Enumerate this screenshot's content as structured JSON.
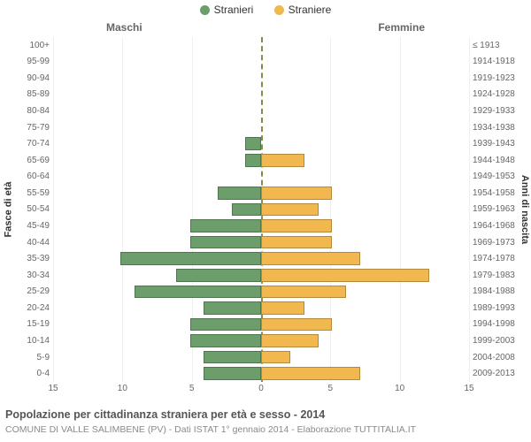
{
  "legend": {
    "male": "Stranieri",
    "female": "Straniere"
  },
  "headers": {
    "male": "Maschi",
    "female": "Femmine"
  },
  "axis_titles": {
    "left": "Fasce di età",
    "right": "Anni di nascita"
  },
  "colors": {
    "male": "#6b9e6b",
    "female": "#f0b84e",
    "bg": "#ffffff",
    "grid": "#efefef",
    "center": "#8a8a4a"
  },
  "x": {
    "ticks_left": [
      15,
      10,
      5,
      0
    ],
    "ticks_right": [
      0,
      5,
      10,
      15
    ],
    "max": 15
  },
  "caption": "Popolazione per cittadinanza straniera per età e sesso - 2014",
  "subcaption": "COMUNE DI VALLE SALIMBENE (PV) - Dati ISTAT 1° gennaio 2014 - Elaborazione TUTTITALIA.IT",
  "rows": [
    {
      "age": "100+",
      "birth": "≤ 1913",
      "m": 0,
      "f": 0
    },
    {
      "age": "95-99",
      "birth": "1914-1918",
      "m": 0,
      "f": 0
    },
    {
      "age": "90-94",
      "birth": "1919-1923",
      "m": 0,
      "f": 0
    },
    {
      "age": "85-89",
      "birth": "1924-1928",
      "m": 0,
      "f": 0
    },
    {
      "age": "80-84",
      "birth": "1929-1933",
      "m": 0,
      "f": 0
    },
    {
      "age": "75-79",
      "birth": "1934-1938",
      "m": 0,
      "f": 0
    },
    {
      "age": "70-74",
      "birth": "1939-1943",
      "m": 1,
      "f": 0
    },
    {
      "age": "65-69",
      "birth": "1944-1948",
      "m": 1,
      "f": 3
    },
    {
      "age": "60-64",
      "birth": "1949-1953",
      "m": 0,
      "f": 0
    },
    {
      "age": "55-59",
      "birth": "1954-1958",
      "m": 3,
      "f": 5
    },
    {
      "age": "50-54",
      "birth": "1959-1963",
      "m": 2,
      "f": 4
    },
    {
      "age": "45-49",
      "birth": "1964-1968",
      "m": 5,
      "f": 5
    },
    {
      "age": "40-44",
      "birth": "1969-1973",
      "m": 5,
      "f": 5
    },
    {
      "age": "35-39",
      "birth": "1974-1978",
      "m": 10,
      "f": 7
    },
    {
      "age": "30-34",
      "birth": "1979-1983",
      "m": 6,
      "f": 12
    },
    {
      "age": "25-29",
      "birth": "1984-1988",
      "m": 9,
      "f": 6
    },
    {
      "age": "20-24",
      "birth": "1989-1993",
      "m": 4,
      "f": 3
    },
    {
      "age": "15-19",
      "birth": "1994-1998",
      "m": 5,
      "f": 5
    },
    {
      "age": "10-14",
      "birth": "1999-2003",
      "m": 5,
      "f": 4
    },
    {
      "age": "5-9",
      "birth": "2004-2008",
      "m": 4,
      "f": 2
    },
    {
      "age": "0-4",
      "birth": "2009-2013",
      "m": 4,
      "f": 7
    }
  ]
}
